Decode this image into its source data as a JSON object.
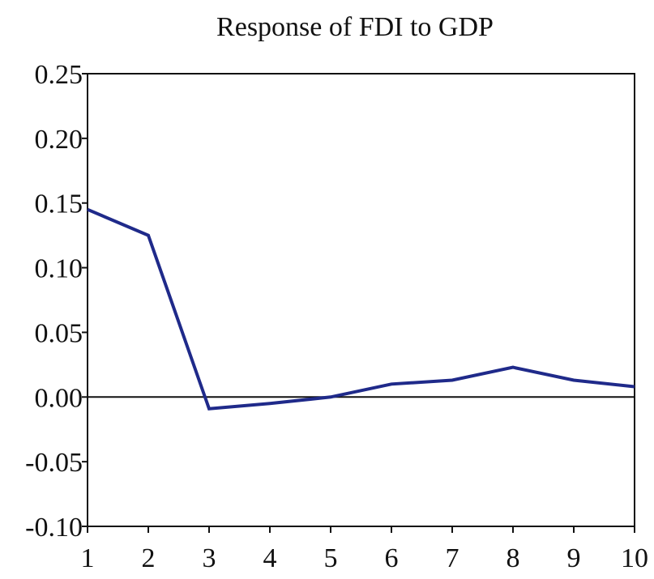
{
  "chart_data": {
    "type": "line",
    "title": "Response of FDI to GDP",
    "xlabel": "",
    "ylabel": "",
    "x": [
      1,
      2,
      3,
      4,
      5,
      6,
      7,
      8,
      9,
      10
    ],
    "series": [
      {
        "values": [
          0.145,
          0.125,
          -0.009,
          -0.005,
          0.0,
          0.01,
          0.013,
          0.023,
          0.013,
          0.008
        ],
        "color": "#1f2a8a"
      }
    ],
    "xlim": [
      1,
      10
    ],
    "ylim": [
      -0.1,
      0.25
    ],
    "x_ticks": [
      "1",
      "2",
      "3",
      "4",
      "5",
      "6",
      "7",
      "8",
      "9",
      "10"
    ],
    "y_ticks": [
      "0.25",
      "0.20",
      "0.15",
      "0.10",
      "0.05",
      "0.00",
      "-0.05",
      "-0.10"
    ],
    "y_tick_values": [
      0.25,
      0.2,
      0.15,
      0.1,
      0.05,
      0.0,
      -0.05,
      -0.1
    ],
    "zero_line": true,
    "grid": false,
    "legend": "none"
  }
}
